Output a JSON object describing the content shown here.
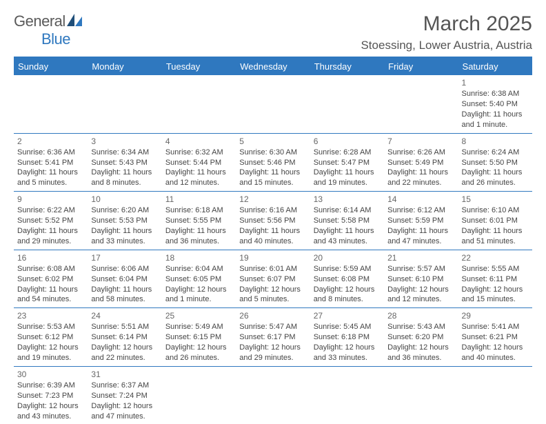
{
  "brand": {
    "name1": "General",
    "name2": "Blue"
  },
  "title": "March 2025",
  "subtitle": "Stoessing, Lower Austria, Austria",
  "colors": {
    "accent": "#2f78bf",
    "text": "#444444",
    "heading": "#555555",
    "bg": "#ffffff"
  },
  "typography": {
    "title_size": 30,
    "subtitle_size": 17,
    "header_size": 13,
    "cell_size": 11
  },
  "calendar": {
    "columns": [
      "Sunday",
      "Monday",
      "Tuesday",
      "Wednesday",
      "Thursday",
      "Friday",
      "Saturday"
    ],
    "weeks": [
      [
        null,
        null,
        null,
        null,
        null,
        null,
        {
          "n": "1",
          "sunrise": "6:38 AM",
          "sunset": "5:40 PM",
          "daylight": "11 hours and 1 minute."
        }
      ],
      [
        {
          "n": "2",
          "sunrise": "6:36 AM",
          "sunset": "5:41 PM",
          "daylight": "11 hours and 5 minutes."
        },
        {
          "n": "3",
          "sunrise": "6:34 AM",
          "sunset": "5:43 PM",
          "daylight": "11 hours and 8 minutes."
        },
        {
          "n": "4",
          "sunrise": "6:32 AM",
          "sunset": "5:44 PM",
          "daylight": "11 hours and 12 minutes."
        },
        {
          "n": "5",
          "sunrise": "6:30 AM",
          "sunset": "5:46 PM",
          "daylight": "11 hours and 15 minutes."
        },
        {
          "n": "6",
          "sunrise": "6:28 AM",
          "sunset": "5:47 PM",
          "daylight": "11 hours and 19 minutes."
        },
        {
          "n": "7",
          "sunrise": "6:26 AM",
          "sunset": "5:49 PM",
          "daylight": "11 hours and 22 minutes."
        },
        {
          "n": "8",
          "sunrise": "6:24 AM",
          "sunset": "5:50 PM",
          "daylight": "11 hours and 26 minutes."
        }
      ],
      [
        {
          "n": "9",
          "sunrise": "6:22 AM",
          "sunset": "5:52 PM",
          "daylight": "11 hours and 29 minutes."
        },
        {
          "n": "10",
          "sunrise": "6:20 AM",
          "sunset": "5:53 PM",
          "daylight": "11 hours and 33 minutes."
        },
        {
          "n": "11",
          "sunrise": "6:18 AM",
          "sunset": "5:55 PM",
          "daylight": "11 hours and 36 minutes."
        },
        {
          "n": "12",
          "sunrise": "6:16 AM",
          "sunset": "5:56 PM",
          "daylight": "11 hours and 40 minutes."
        },
        {
          "n": "13",
          "sunrise": "6:14 AM",
          "sunset": "5:58 PM",
          "daylight": "11 hours and 43 minutes."
        },
        {
          "n": "14",
          "sunrise": "6:12 AM",
          "sunset": "5:59 PM",
          "daylight": "11 hours and 47 minutes."
        },
        {
          "n": "15",
          "sunrise": "6:10 AM",
          "sunset": "6:01 PM",
          "daylight": "11 hours and 51 minutes."
        }
      ],
      [
        {
          "n": "16",
          "sunrise": "6:08 AM",
          "sunset": "6:02 PM",
          "daylight": "11 hours and 54 minutes."
        },
        {
          "n": "17",
          "sunrise": "6:06 AM",
          "sunset": "6:04 PM",
          "daylight": "11 hours and 58 minutes."
        },
        {
          "n": "18",
          "sunrise": "6:04 AM",
          "sunset": "6:05 PM",
          "daylight": "12 hours and 1 minute."
        },
        {
          "n": "19",
          "sunrise": "6:01 AM",
          "sunset": "6:07 PM",
          "daylight": "12 hours and 5 minutes."
        },
        {
          "n": "20",
          "sunrise": "5:59 AM",
          "sunset": "6:08 PM",
          "daylight": "12 hours and 8 minutes."
        },
        {
          "n": "21",
          "sunrise": "5:57 AM",
          "sunset": "6:10 PM",
          "daylight": "12 hours and 12 minutes."
        },
        {
          "n": "22",
          "sunrise": "5:55 AM",
          "sunset": "6:11 PM",
          "daylight": "12 hours and 15 minutes."
        }
      ],
      [
        {
          "n": "23",
          "sunrise": "5:53 AM",
          "sunset": "6:12 PM",
          "daylight": "12 hours and 19 minutes."
        },
        {
          "n": "24",
          "sunrise": "5:51 AM",
          "sunset": "6:14 PM",
          "daylight": "12 hours and 22 minutes."
        },
        {
          "n": "25",
          "sunrise": "5:49 AM",
          "sunset": "6:15 PM",
          "daylight": "12 hours and 26 minutes."
        },
        {
          "n": "26",
          "sunrise": "5:47 AM",
          "sunset": "6:17 PM",
          "daylight": "12 hours and 29 minutes."
        },
        {
          "n": "27",
          "sunrise": "5:45 AM",
          "sunset": "6:18 PM",
          "daylight": "12 hours and 33 minutes."
        },
        {
          "n": "28",
          "sunrise": "5:43 AM",
          "sunset": "6:20 PM",
          "daylight": "12 hours and 36 minutes."
        },
        {
          "n": "29",
          "sunrise": "5:41 AM",
          "sunset": "6:21 PM",
          "daylight": "12 hours and 40 minutes."
        }
      ],
      [
        {
          "n": "30",
          "sunrise": "6:39 AM",
          "sunset": "7:23 PM",
          "daylight": "12 hours and 43 minutes."
        },
        {
          "n": "31",
          "sunrise": "6:37 AM",
          "sunset": "7:24 PM",
          "daylight": "12 hours and 47 minutes."
        },
        null,
        null,
        null,
        null,
        null
      ]
    ],
    "labels": {
      "sunrise": "Sunrise: ",
      "sunset": "Sunset: ",
      "daylight": "Daylight: "
    }
  }
}
